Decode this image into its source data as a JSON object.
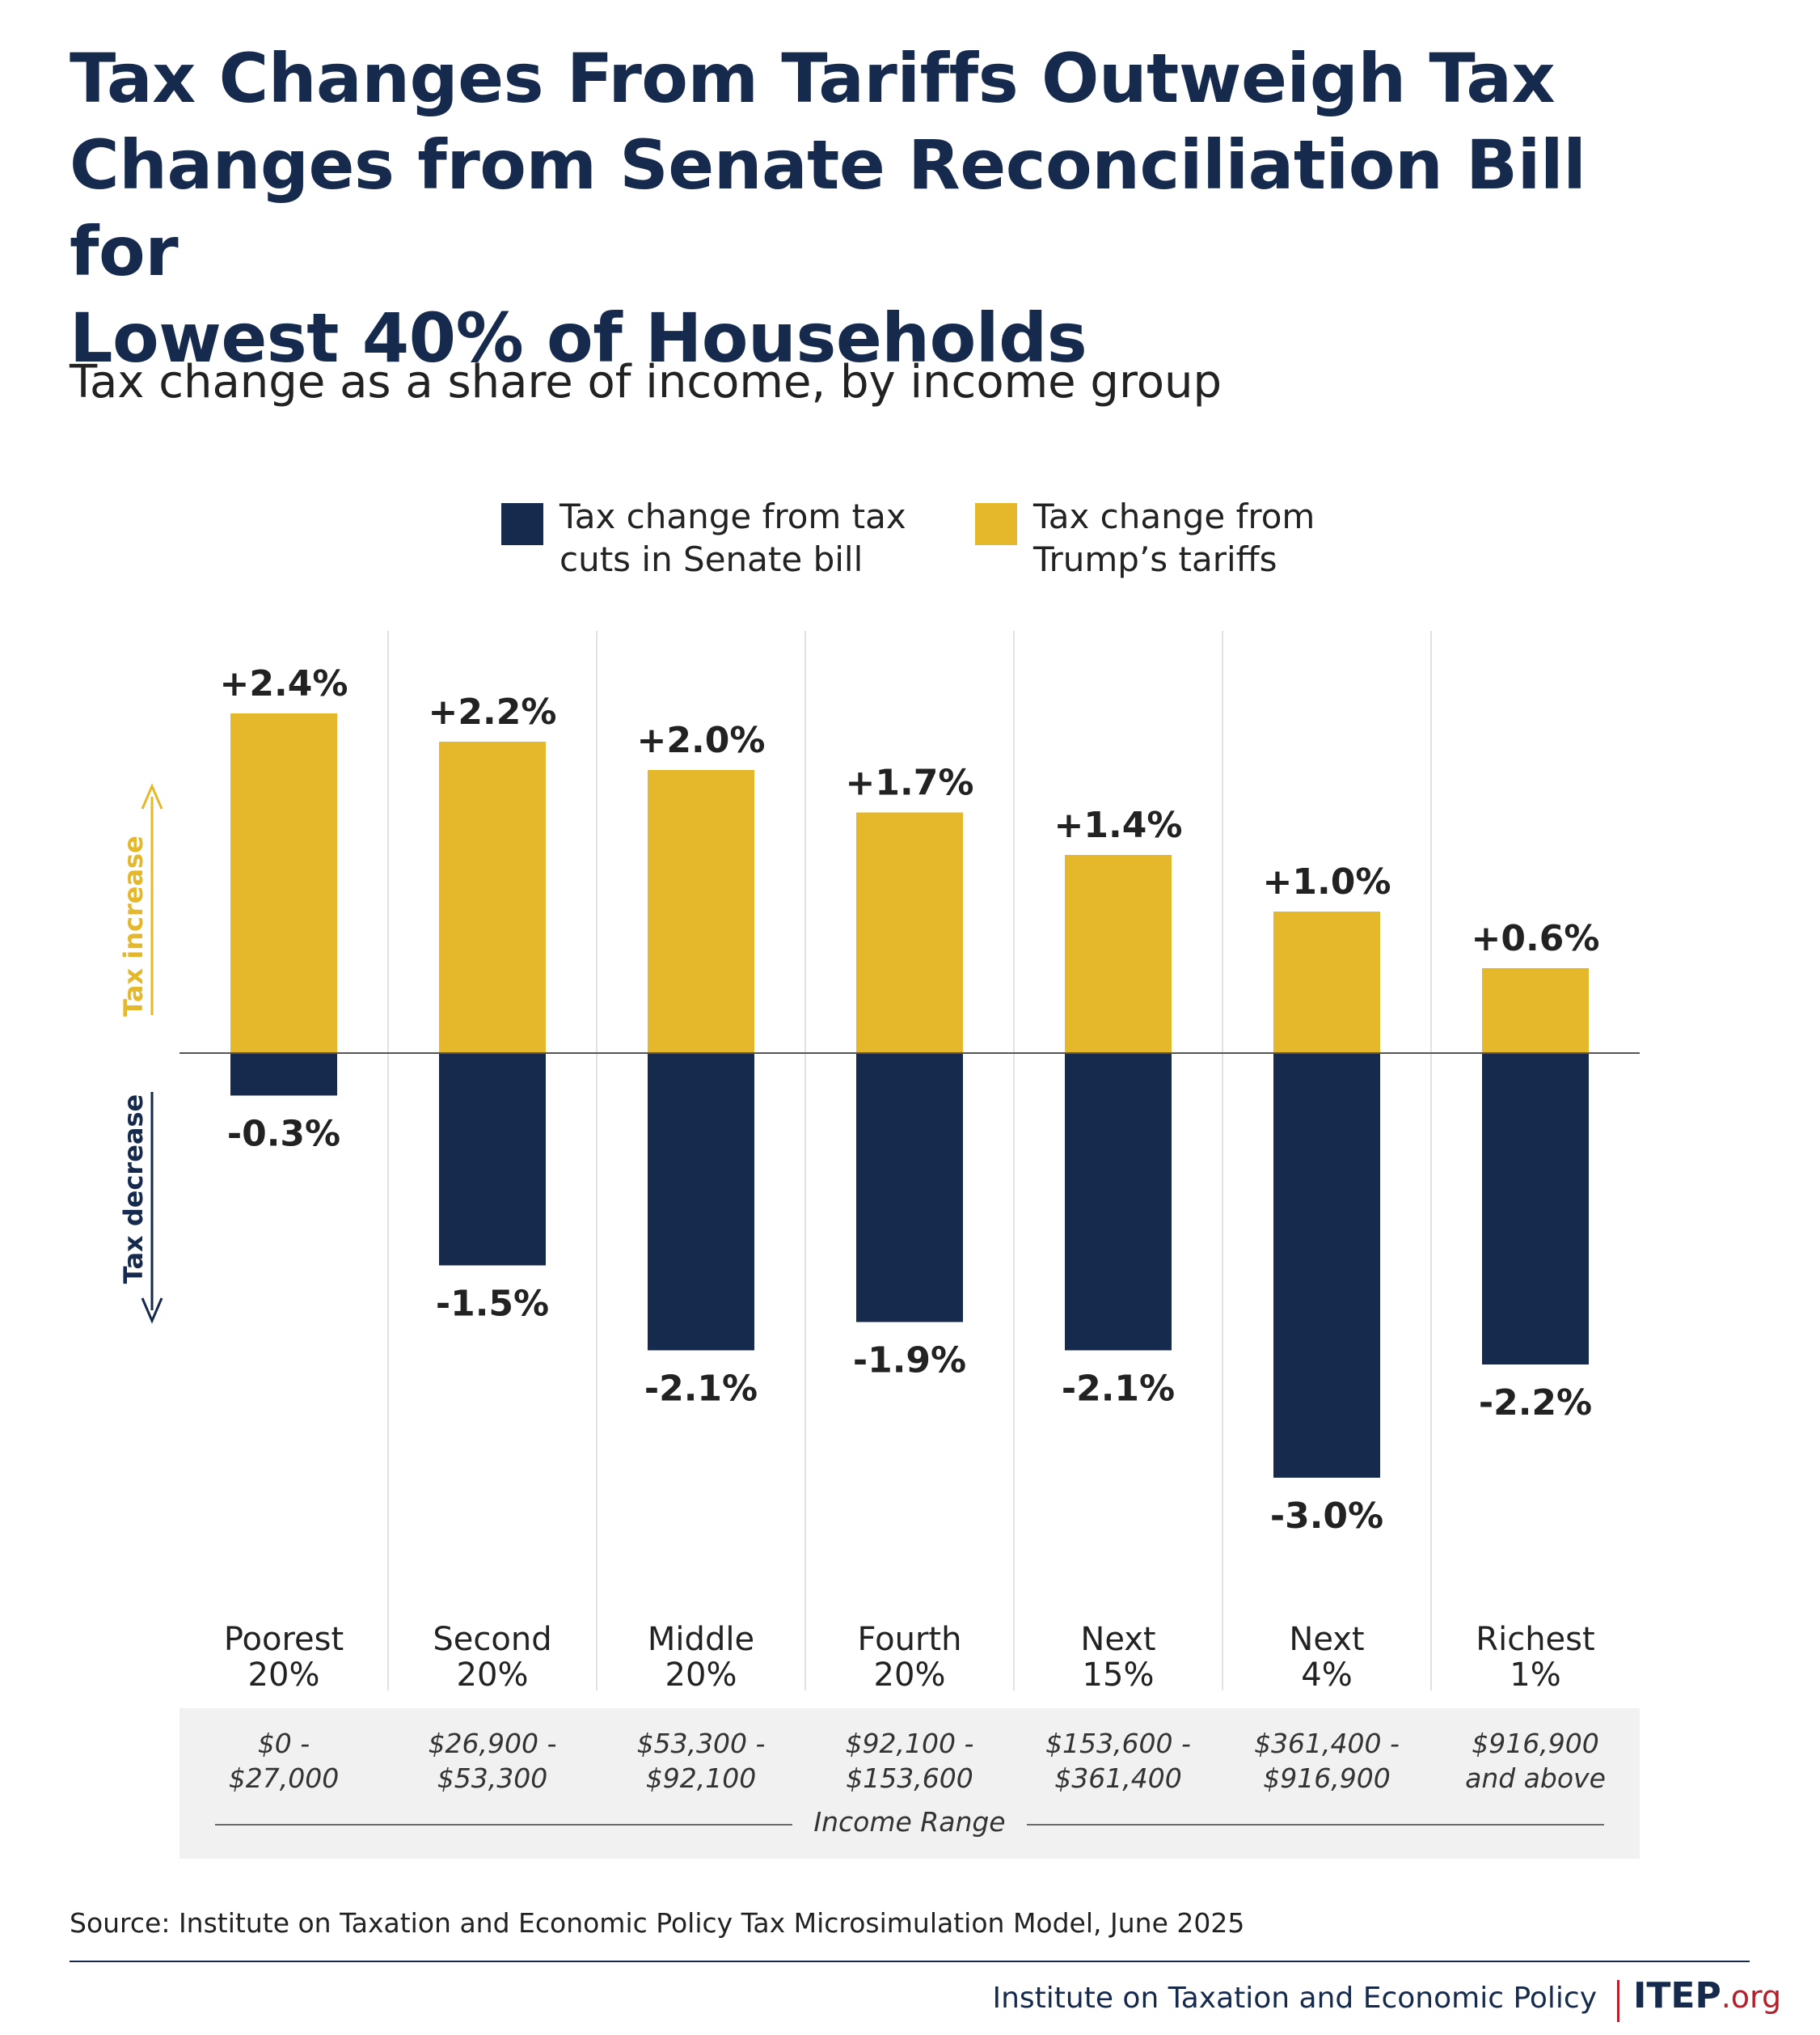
{
  "title": "Tax Changes From Tariffs Outweigh Tax\nChanges from Senate Reconciliation Bill for\nLowest 40% of Households",
  "subtitle": "Tax change as a share of income, by income group",
  "legend": [
    {
      "label": "Tax change from tax\ncuts in Senate bill",
      "color": "#152a4d"
    },
    {
      "label": "Tax change from\nTrump’s tariffs",
      "color": "#e5b82b"
    }
  ],
  "axis_annotations": {
    "increase": "Tax increase",
    "decrease": "Tax decrease"
  },
  "chart_data": {
    "type": "bar",
    "categories": [
      "Poorest\n20%",
      "Second\n20%",
      "Middle\n20%",
      "Fourth\n20%",
      "Next\n15%",
      "Next\n4%",
      "Richest\n1%"
    ],
    "income_ranges": [
      "$0 -\n$27,000",
      "$26,900 -\n$53,300",
      "$53,300 -\n$92,100",
      "$92,100 -\n$153,600",
      "$153,600 -\n$361,400",
      "$361,400 -\n$916,900",
      "$916,900\nand above"
    ],
    "income_range_title": "Income Range",
    "series": [
      {
        "name": "Tax change from tax cuts in Senate bill",
        "color": "#152a4d",
        "values": [
          -0.3,
          -1.5,
          -2.1,
          -1.9,
          -2.1,
          -3.0,
          -2.2
        ],
        "labels": [
          "-0.3%",
          "-1.5%",
          "-2.1%",
          "-1.9%",
          "-2.1%",
          "-3.0%",
          "-2.2%"
        ]
      },
      {
        "name": "Tax change from Trump’s tariffs",
        "color": "#e5b82b",
        "values": [
          2.4,
          2.2,
          2.0,
          1.7,
          1.4,
          1.0,
          0.6
        ],
        "labels": [
          "+2.4%",
          "+2.2%",
          "+2.0%",
          "+1.7%",
          "+1.4%",
          "+1.0%",
          "+0.6%"
        ]
      }
    ],
    "ylim": [
      -3.0,
      2.4
    ],
    "grid": false
  },
  "source": "Source: Institute on Taxation and Economic Policy Tax Microsimulation Model, June 2025",
  "footer": {
    "org_name": "Institute on Taxation and Economic Policy",
    "logo_main": "ITEP",
    "logo_suffix": ".org"
  }
}
